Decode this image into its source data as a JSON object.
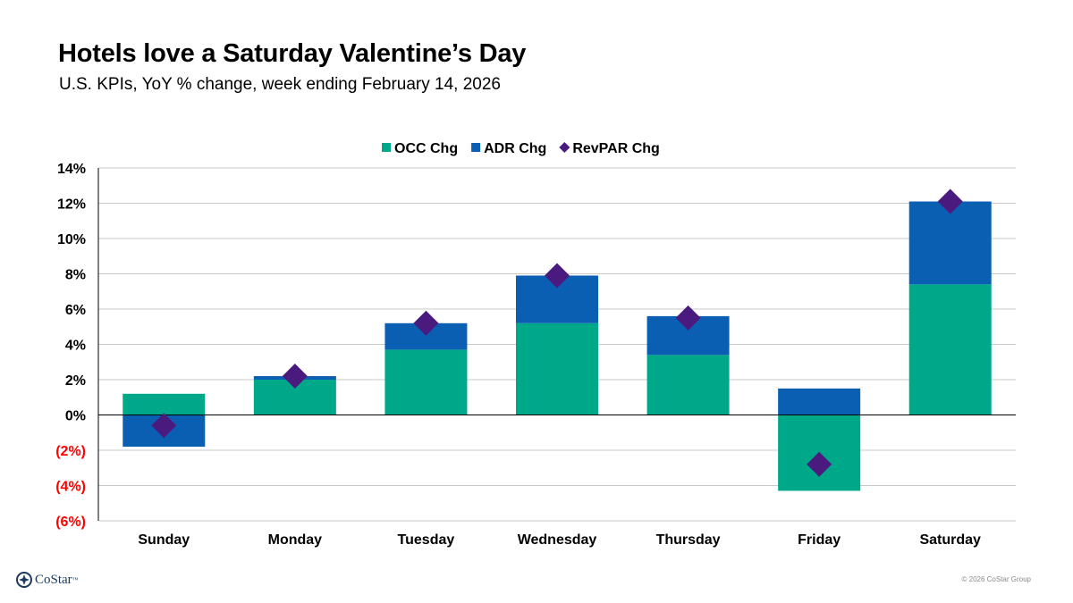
{
  "title": "Hotels love a Saturday Valentine’s Day",
  "subtitle": "U.S. KPIs, YoY % change, week ending February 14, 2026",
  "brand": {
    "name": "CoStar",
    "tm": "™"
  },
  "copyright": "© 2026 CoStar Group",
  "colors": {
    "occ": "#00a88a",
    "adr": "#0b5fb3",
    "revpar": "#4b1a7e",
    "negative_tick": "#ff0000",
    "grid": "#c8c8c8"
  },
  "chart_data": {
    "type": "bar",
    "stacked": true,
    "categories": [
      "Sunday",
      "Monday",
      "Tuesday",
      "Wednesday",
      "Thursday",
      "Friday",
      "Saturday"
    ],
    "series": [
      {
        "name": "OCC Chg",
        "kind": "bar",
        "values": [
          1.2,
          2.0,
          3.7,
          5.2,
          3.4,
          -4.3,
          7.4
        ]
      },
      {
        "name": "ADR Chg",
        "kind": "bar",
        "values": [
          -1.8,
          0.2,
          1.5,
          2.7,
          2.2,
          1.5,
          4.7
        ]
      },
      {
        "name": "RevPAR Chg",
        "kind": "marker",
        "values": [
          -0.6,
          2.2,
          5.2,
          7.9,
          5.5,
          -2.8,
          12.1
        ]
      }
    ],
    "ylim": [
      -6,
      14
    ],
    "yticks": [
      {
        "value": 14,
        "label": "14%"
      },
      {
        "value": 12,
        "label": "12%"
      },
      {
        "value": 10,
        "label": "10%"
      },
      {
        "value": 8,
        "label": "8%"
      },
      {
        "value": 6,
        "label": "6%"
      },
      {
        "value": 4,
        "label": "4%"
      },
      {
        "value": 2,
        "label": "2%"
      },
      {
        "value": 0,
        "label": "0%"
      },
      {
        "value": -2,
        "label": "(2%)"
      },
      {
        "value": -4,
        "label": "(4%)"
      },
      {
        "value": -6,
        "label": "(6%)"
      }
    ],
    "grid": true,
    "legend": "top-center"
  }
}
